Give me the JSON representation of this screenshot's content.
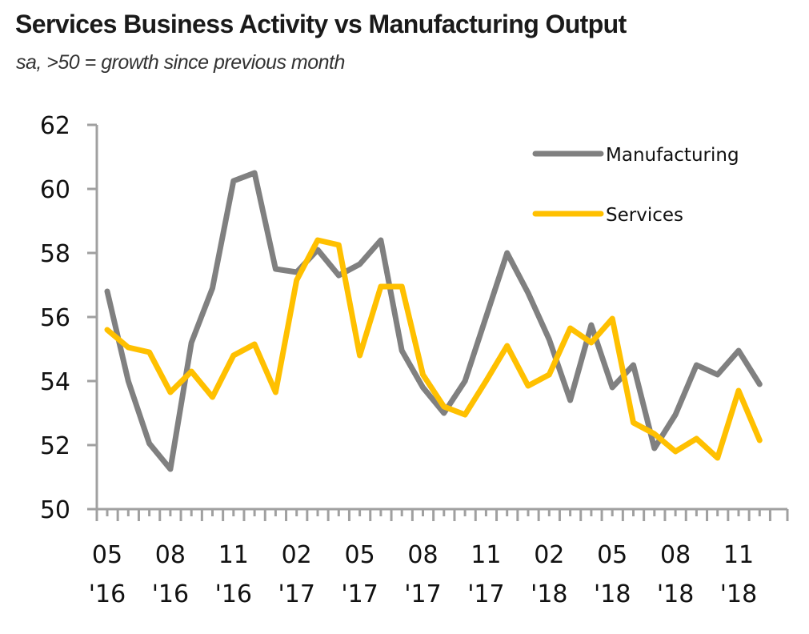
{
  "header": {
    "title": "Services Business Activity vs Manufacturing Output",
    "subtitle": "sa, >50 = growth since previous month"
  },
  "colors": {
    "manufacturing": "#808080",
    "services": "#FFC000",
    "axis": "#a0a0a0"
  },
  "chart_data": {
    "type": "line",
    "title": "Services Business Activity vs Manufacturing Output",
    "subtitle": "sa, >50 = growth since previous month",
    "xlabel": "",
    "ylabel": "",
    "ylim": [
      50,
      62
    ],
    "yticks": [
      50,
      52,
      54,
      56,
      58,
      60,
      62
    ],
    "grid": false,
    "legend_position": "top-right",
    "x": [
      "05 '16",
      "06 '16",
      "07 '16",
      "08 '16",
      "09 '16",
      "10 '16",
      "11 '16",
      "12 '16",
      "01 '17",
      "02 '17",
      "03 '17",
      "04 '17",
      "05 '17",
      "06 '17",
      "07 '17",
      "08 '17",
      "09 '17",
      "10 '17",
      "11 '17",
      "12 '17",
      "01 '18",
      "02 '18",
      "03 '18",
      "04 '18",
      "05 '18",
      "06 '18",
      "07 '18",
      "08 '18",
      "09 '18",
      "10 '18",
      "11 '18",
      "12 '18"
    ],
    "xtick_labels": [
      {
        "index": 0,
        "month": "05",
        "year": "'16"
      },
      {
        "index": 3,
        "month": "08",
        "year": "'16"
      },
      {
        "index": 6,
        "month": "11",
        "year": "'16"
      },
      {
        "index": 9,
        "month": "02",
        "year": "'17"
      },
      {
        "index": 12,
        "month": "05",
        "year": "'17"
      },
      {
        "index": 15,
        "month": "08",
        "year": "'17"
      },
      {
        "index": 18,
        "month": "11",
        "year": "'17"
      },
      {
        "index": 21,
        "month": "02",
        "year": "'18"
      },
      {
        "index": 24,
        "month": "05",
        "year": "'18"
      },
      {
        "index": 27,
        "month": "08",
        "year": "'18"
      },
      {
        "index": 30,
        "month": "11",
        "year": "'18"
      }
    ],
    "series": [
      {
        "name": "Manufacturing",
        "color": "#808080",
        "values": [
          56.8,
          54.0,
          52.05,
          51.25,
          55.2,
          56.9,
          60.25,
          60.5,
          57.5,
          57.4,
          58.1,
          57.3,
          57.65,
          58.4,
          54.95,
          53.8,
          53.0,
          54.0,
          56.0,
          58.0,
          56.75,
          55.3,
          53.4,
          55.75,
          53.8,
          54.5,
          51.9,
          52.95,
          54.5,
          54.2,
          54.95,
          53.9
        ]
      },
      {
        "name": "Services",
        "color": "#FFC000",
        "values": [
          55.6,
          55.05,
          54.9,
          53.65,
          54.3,
          53.5,
          54.8,
          55.15,
          53.65,
          57.15,
          58.4,
          58.25,
          54.8,
          56.95,
          56.95,
          54.2,
          53.2,
          52.95,
          54.0,
          55.1,
          53.85,
          54.2,
          55.65,
          55.2,
          55.95,
          52.7,
          52.35,
          51.8,
          52.2,
          51.6,
          53.7,
          52.15
        ]
      }
    ]
  }
}
